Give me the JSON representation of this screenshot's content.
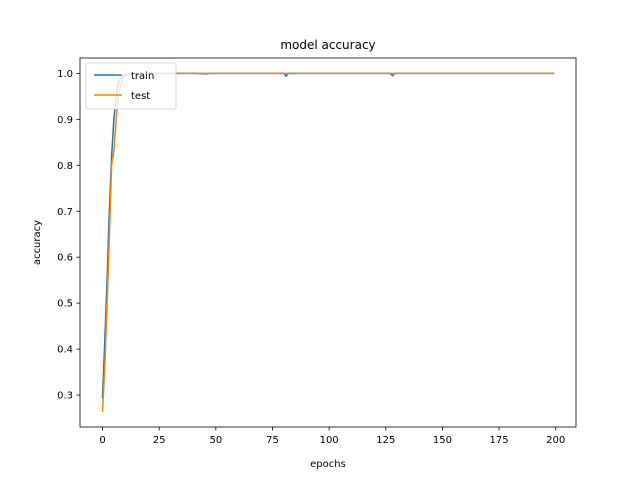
{
  "chart_data": {
    "type": "line",
    "title": "model accuracy",
    "xlabel": "epochs",
    "ylabel": "accuracy",
    "xlim": [
      -9.95,
      208.95
    ],
    "ylim": [
      0.2305,
      1.0335
    ],
    "xticks": [
      0,
      25,
      50,
      75,
      100,
      125,
      150,
      175,
      200
    ],
    "yticks": [
      0.3,
      0.4,
      0.5,
      0.6,
      0.7,
      0.8,
      0.9,
      1.0
    ],
    "ytick_labels": [
      "0.3",
      "0.4",
      "0.5",
      "0.6",
      "0.7",
      "0.8",
      "0.9",
      "1.0"
    ],
    "grid": false,
    "legend_position": "upper left",
    "series": [
      {
        "name": "train",
        "color": "#1f77b4",
        "points": [
          [
            0,
            0.295
          ],
          [
            1,
            0.42
          ],
          [
            2,
            0.55
          ],
          [
            3,
            0.7
          ],
          [
            4,
            0.82
          ],
          [
            5,
            0.9
          ],
          [
            6,
            0.95
          ],
          [
            7,
            0.98
          ],
          [
            8,
            0.99
          ],
          [
            9,
            0.995
          ],
          [
            10,
            0.997
          ],
          [
            12,
            0.999
          ],
          [
            15,
            1.0
          ],
          [
            20,
            1.0
          ],
          [
            25,
            1.0
          ],
          [
            30,
            1.0
          ],
          [
            40,
            1.0
          ],
          [
            46,
            0.999
          ],
          [
            47,
            1.0
          ],
          [
            60,
            1.0
          ],
          [
            70,
            1.0
          ],
          [
            80,
            1.0
          ],
          [
            81,
            0.994
          ],
          [
            82,
            1.0
          ],
          [
            90,
            1.0
          ],
          [
            100,
            1.0
          ],
          [
            110,
            1.0
          ],
          [
            120,
            1.0
          ],
          [
            127,
            1.0
          ],
          [
            128,
            0.995
          ],
          [
            129,
            1.0
          ],
          [
            140,
            1.0
          ],
          [
            150,
            1.0
          ],
          [
            160,
            1.0
          ],
          [
            170,
            1.0
          ],
          [
            180,
            1.0
          ],
          [
            190,
            1.0
          ],
          [
            199,
            1.0
          ]
        ]
      },
      {
        "name": "test",
        "color": "#ff7f0e",
        "points": [
          [
            0,
            0.265
          ],
          [
            1,
            0.36
          ],
          [
            2,
            0.5
          ],
          [
            3,
            0.64
          ],
          [
            4,
            0.8
          ],
          [
            5,
            0.83
          ],
          [
            6,
            0.9
          ],
          [
            7,
            0.95
          ],
          [
            8,
            0.975
          ],
          [
            9,
            0.99
          ],
          [
            10,
            0.995
          ],
          [
            12,
            0.998
          ],
          [
            15,
            1.0
          ],
          [
            20,
            1.0
          ],
          [
            30,
            1.0
          ],
          [
            40,
            1.0
          ],
          [
            50,
            1.0
          ],
          [
            60,
            1.0
          ],
          [
            70,
            1.0
          ],
          [
            80,
            1.0
          ],
          [
            90,
            1.0
          ],
          [
            100,
            1.0
          ],
          [
            110,
            1.0
          ],
          [
            120,
            1.0
          ],
          [
            130,
            1.0
          ],
          [
            140,
            1.0
          ],
          [
            150,
            1.0
          ],
          [
            160,
            1.0
          ],
          [
            170,
            1.0
          ],
          [
            180,
            1.0
          ],
          [
            190,
            1.0
          ],
          [
            199,
            1.0
          ]
        ]
      }
    ]
  }
}
